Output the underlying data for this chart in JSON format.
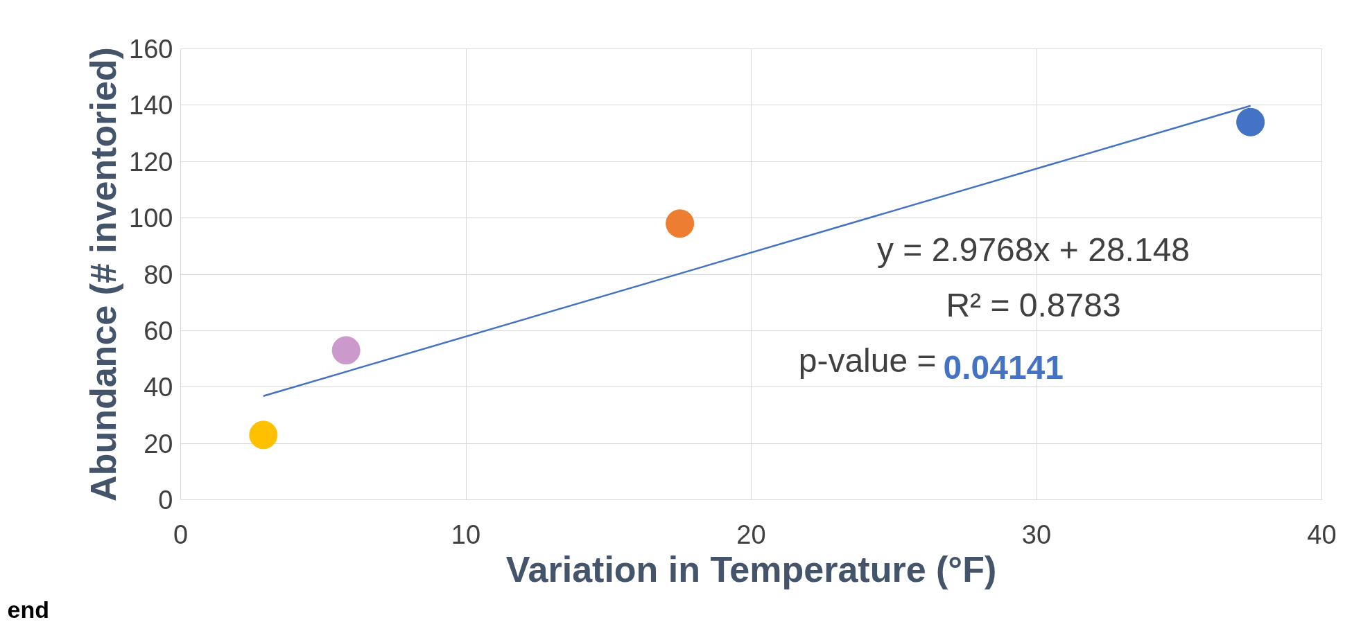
{
  "chart_data": {
    "type": "scatter",
    "xlabel": "Variation in Temperature (°F)",
    "ylabel": "Abundance (# inventoried)",
    "xlim": [
      0,
      40
    ],
    "xticks": [
      0,
      10,
      20,
      30,
      40
    ],
    "ylim": [
      0,
      160
    ],
    "yticks": [
      0,
      20,
      40,
      60,
      80,
      100,
      120,
      140,
      160
    ],
    "grid": true,
    "marker": "circle",
    "series": [
      {
        "x": [
          2.9,
          5.8,
          17.5,
          37.5
        ],
        "values": [
          23,
          53,
          98,
          134
        ],
        "colors": [
          "#ffc000",
          "#cc99cc",
          "#ed7d31",
          "#4472c4"
        ]
      },
      {
        "type": "line",
        "x": [
          2.9,
          37.5
        ],
        "values": [
          36.8,
          139.8
        ],
        "color": "#4472c4",
        "line_style": "solid",
        "marker": "none"
      }
    ],
    "annotations": [
      "y = 2.9768x + 28.148",
      "R² = 0.8783",
      "p-value =",
      "0.04141",
      "end"
    ]
  }
}
